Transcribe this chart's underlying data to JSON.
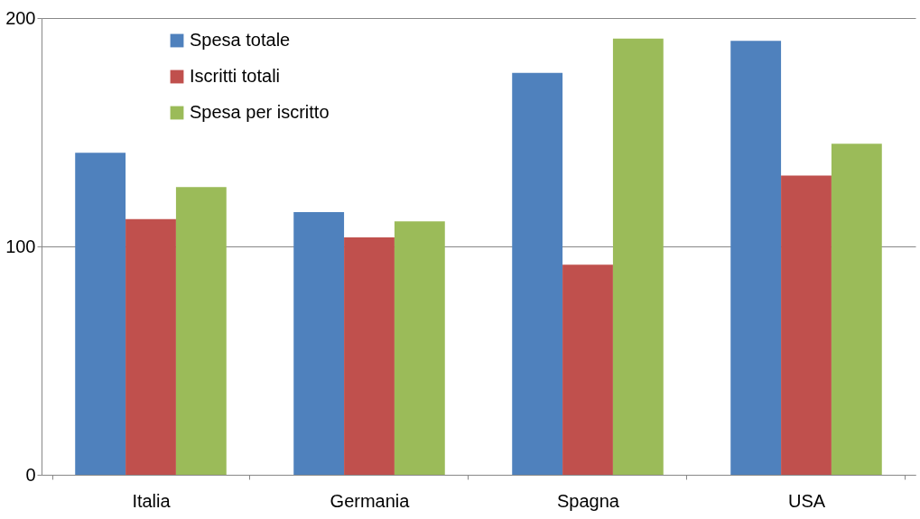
{
  "chart_data": {
    "type": "bar",
    "categories": [
      "Italia",
      "Germania",
      "Spagna",
      "USA"
    ],
    "series": [
      {
        "name": "Spesa totale",
        "color": "#4f81bd",
        "values": [
          141,
          115,
          176,
          190
        ]
      },
      {
        "name": "Iscritti totali",
        "color": "#c0504d",
        "values": [
          112,
          104,
          92,
          131
        ]
      },
      {
        "name": "Spesa per iscritto",
        "color": "#9bbb59",
        "values": [
          126,
          111,
          191,
          145
        ]
      }
    ],
    "ylim": [
      0,
      200
    ],
    "yticks": [
      0,
      100,
      200
    ],
    "grid": "y",
    "legend": "top left"
  }
}
